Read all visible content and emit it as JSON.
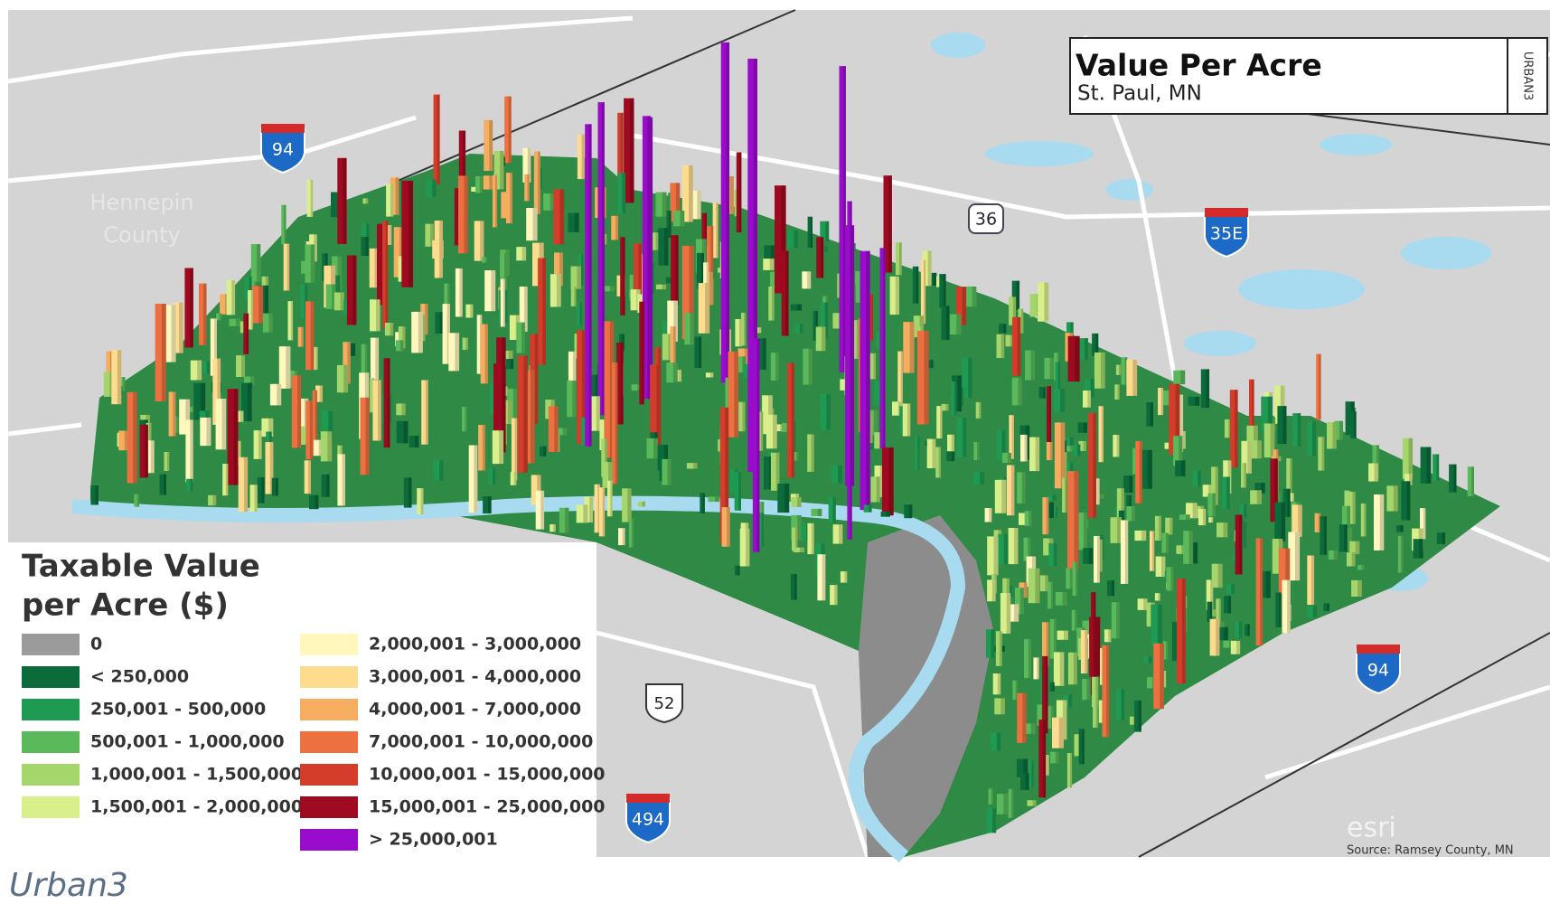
{
  "map": {
    "title": "Value Per Acre",
    "subtitle": "St. Paul, MN",
    "brand": "URBAN3",
    "place_label": [
      "Hennepin",
      "County"
    ],
    "highways": [
      {
        "label": "94",
        "type": "interstate"
      },
      {
        "label": "36",
        "type": "state"
      },
      {
        "label": "35E",
        "type": "interstate"
      },
      {
        "label": "52",
        "type": "us"
      },
      {
        "label": "494",
        "type": "interstate"
      },
      {
        "label": "94",
        "type": "interstate"
      }
    ],
    "legend": {
      "title": [
        "Taxable Value",
        "per Acre ($)"
      ],
      "items": [
        {
          "label": "0",
          "color": "#9b9b9b"
        },
        {
          "label": "< 250,000",
          "color": "#0b6b3a"
        },
        {
          "label": "250,001 - 500,000",
          "color": "#1f9a52"
        },
        {
          "label": "500,001 - 1,000,000",
          "color": "#5ab95a"
        },
        {
          "label": "1,000,001 - 1,500,000",
          "color": "#a5d66b"
        },
        {
          "label": "1,500,001 - 2,000,000",
          "color": "#d9ef8b"
        },
        {
          "label": "2,000,001 - 3,000,000",
          "color": "#fff7bc"
        },
        {
          "label": "3,000,001 - 4,000,000",
          "color": "#fedc8e"
        },
        {
          "label": "4,000,001 - 7,000,000",
          "color": "#f6ad60"
        },
        {
          "label": "7,000,001 - 10,000,000",
          "color": "#ec7040"
        },
        {
          "label": "10,000,001 - 15,000,000",
          "color": "#d43d2a"
        },
        {
          "label": "15,000,001 - 25,000,000",
          "color": "#9e0a1f"
        },
        {
          "label": "> 25,000,001",
          "color": "#9a0ccc"
        }
      ]
    },
    "esri": "esri",
    "source": "Source: Ramsey County, MN"
  },
  "caption": "Urban3"
}
